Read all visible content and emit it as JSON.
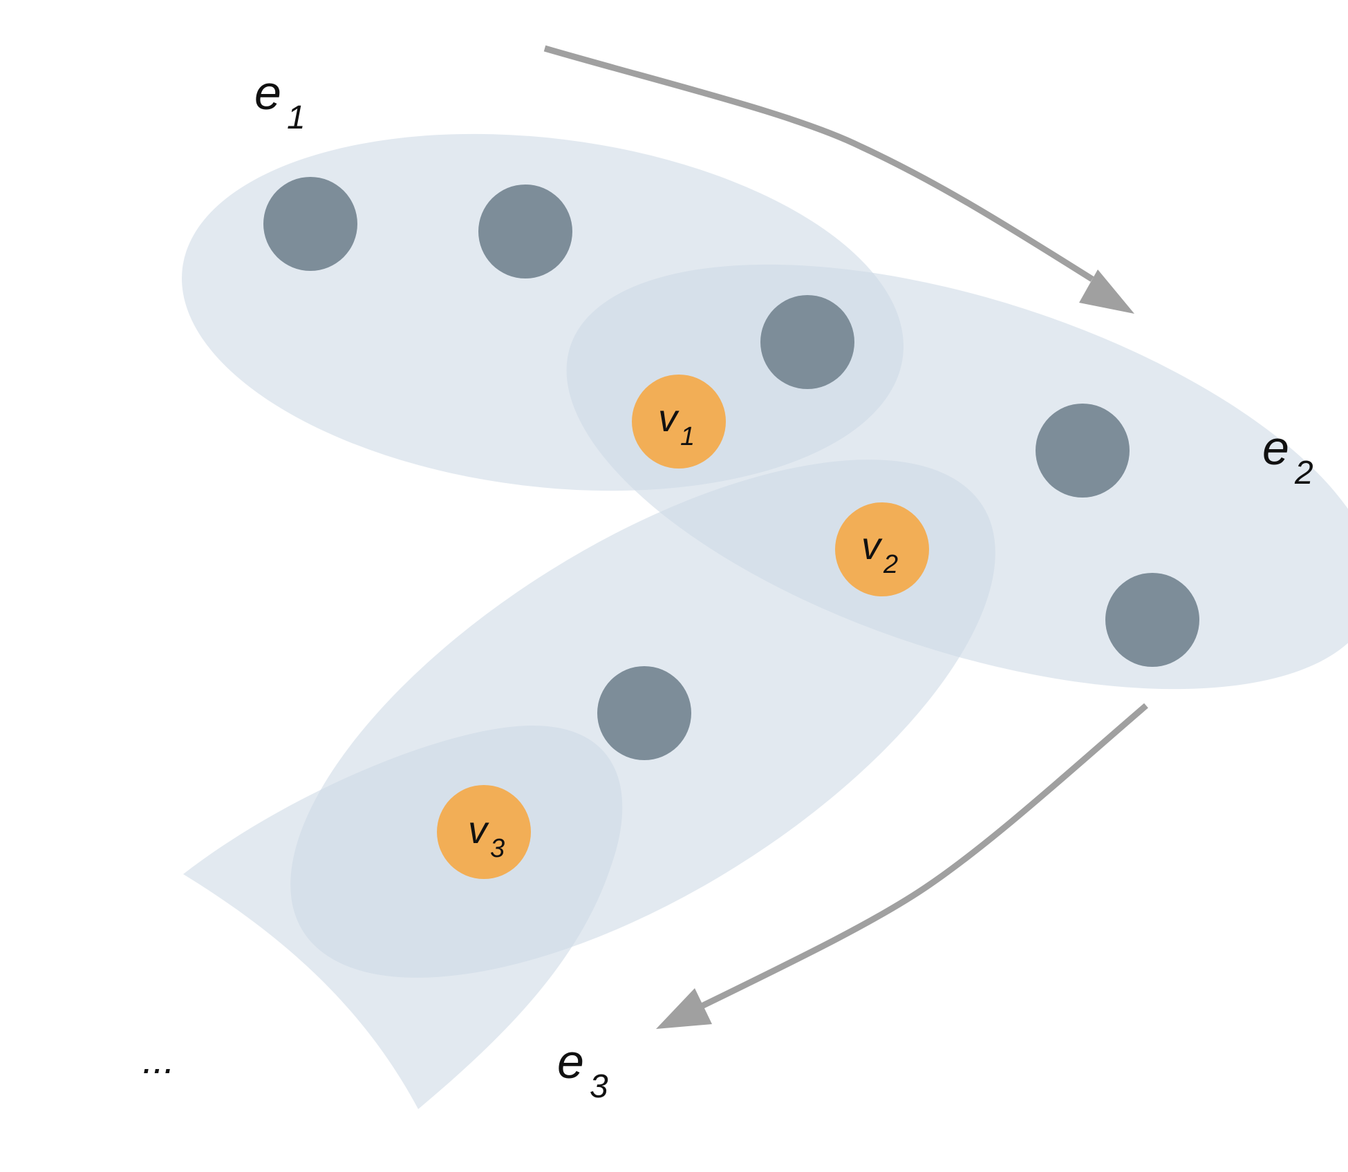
{
  "colors": {
    "hyperedge_fill": "#cfdbe6",
    "hyperedge_fill_opacity": 0.6,
    "vertex_gray": "#7d8d99",
    "vertex_orange": "#f2ae56",
    "arrow": "#a0a0a0",
    "text": "#111111"
  },
  "labels": {
    "e1": {
      "base": "e",
      "sub": "1"
    },
    "e2": {
      "base": "e",
      "sub": "2"
    },
    "e3": {
      "base": "e",
      "sub": "3"
    },
    "v1": {
      "base": "v",
      "sub": "1"
    },
    "v2": {
      "base": "v",
      "sub": "2"
    },
    "v3": {
      "base": "v",
      "sub": "3"
    },
    "ellipsis": "..."
  }
}
